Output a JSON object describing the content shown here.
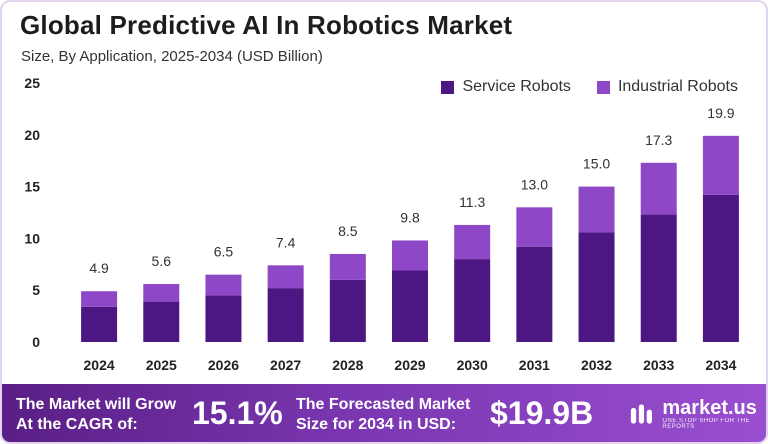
{
  "header": {
    "title": "Global Predictive AI In Robotics Market",
    "subtitle": "Size, By Application, 2025-2034 (USD Billion)"
  },
  "colors": {
    "service": "#4d1783",
    "industrial": "#8e48c7"
  },
  "chart_data": {
    "type": "bar",
    "stacked": true,
    "categories": [
      "2024",
      "2025",
      "2026",
      "2027",
      "2028",
      "2029",
      "2030",
      "2031",
      "2032",
      "2033",
      "2034"
    ],
    "series": [
      {
        "name": "Service Robots",
        "values": [
          3.4,
          3.9,
          4.5,
          5.2,
          6.0,
          6.9,
          8.0,
          9.2,
          10.6,
          12.3,
          14.2
        ]
      },
      {
        "name": "Industrial Robots",
        "values": [
          1.5,
          1.7,
          2.0,
          2.2,
          2.5,
          2.9,
          3.3,
          3.8,
          4.4,
          5.0,
          5.7
        ]
      }
    ],
    "totals": [
      "4.9",
      "5.6",
      "6.5",
      "7.4",
      "8.5",
      "9.8",
      "11.3",
      "13.0",
      "15.0",
      "17.3",
      "19.9"
    ],
    "ylim": [
      0,
      25
    ],
    "yticks": [
      "0",
      "5",
      "10",
      "15",
      "20",
      "25"
    ],
    "grid": false,
    "legend": "top-right"
  },
  "footer": {
    "cagr_line1": "The Market will Grow",
    "cagr_line2": "At the CAGR of:",
    "cagr_value": "15.1%",
    "forecast_line1": "The Forecasted Market",
    "forecast_line2": "Size for 2034 in USD:",
    "forecast_value": "$19.9B",
    "brand": "market.us",
    "brand_tag": "ONE STOP SHOP FOR THE REPORTS"
  }
}
